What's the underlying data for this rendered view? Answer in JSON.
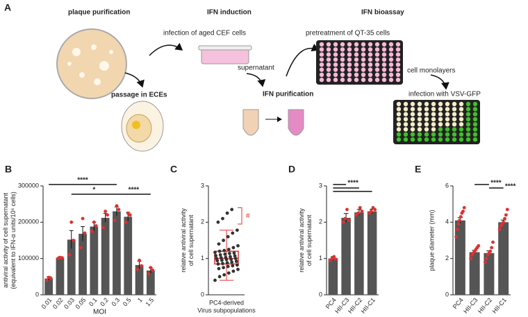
{
  "diagram": {
    "panel": "A",
    "steps": [
      "plaque purification",
      "IFN induction",
      "IFN bioassay"
    ],
    "labels": [
      "passage in ECEs",
      "infection of aged CEF cells",
      "supernatant",
      "IFN purification",
      "pretreatment of QT-35 cells",
      "cell monolayers",
      "infection with VSV-GFP"
    ]
  },
  "chart_data": [
    {
      "type": "bar",
      "panel": "B",
      "xlabel": "MOI",
      "ylabel": [
        "antiviral activity of cell supernatant",
        "(equivalent to IFN-α units/10⁶ cells)"
      ],
      "categories": [
        "0.01",
        "0.02",
        "0.03",
        "0.05",
        "0.1",
        "0.2",
        "0.3",
        "0.5",
        "1",
        "1.5"
      ],
      "values": [
        45000,
        102000,
        152000,
        168000,
        188000,
        212000,
        230000,
        215000,
        82000,
        67000
      ],
      "errors": [
        5000,
        3000,
        25000,
        20000,
        12000,
        12000,
        12000,
        12000,
        10000,
        8000
      ],
      "points": [
        [
          40000,
          48000,
          46000
        ],
        [
          100000,
          103000,
          102000
        ],
        [
          110000,
          200000,
          150000
        ],
        [
          130000,
          210000,
          170000
        ],
        [
          175000,
          200000,
          190000
        ],
        [
          185000,
          230000,
          220000
        ],
        [
          205000,
          245000,
          235000
        ],
        [
          200000,
          225000,
          220000
        ],
        [
          70000,
          95000,
          80000
        ],
        [
          58000,
          75000,
          68000
        ]
      ],
      "ylim": [
        0,
        300000
      ],
      "yticks": [
        0,
        100000,
        200000,
        300000
      ],
      "annotations": [
        "****",
        "*",
        "****"
      ],
      "color": "#555555",
      "point_color": "#e03030"
    },
    {
      "type": "box",
      "panel": "C",
      "ylabel": [
        "relative antiviral activity",
        "of cell supernatant"
      ],
      "categories": [
        [
          "PC4-derived",
          "Virus subpopulations"
        ]
      ],
      "whisker_low": 0.4,
      "q1": 0.85,
      "median": 1.0,
      "q3": 1.2,
      "whisker_high": 1.78,
      "points": [
        0.4,
        0.5,
        0.55,
        0.6,
        0.65,
        0.7,
        0.72,
        0.75,
        0.78,
        0.8,
        0.82,
        0.85,
        0.86,
        0.88,
        0.9,
        0.92,
        0.94,
        0.95,
        0.97,
        0.98,
        1.0,
        1.0,
        1.02,
        1.03,
        1.05,
        1.07,
        1.08,
        1.1,
        1.12,
        1.14,
        1.15,
        1.17,
        1.2,
        1.22,
        1.25,
        1.3,
        1.35,
        1.4,
        1.5,
        1.6,
        1.7,
        1.78,
        2.0,
        2.1,
        2.25,
        2.35
      ],
      "ylim": [
        0,
        3
      ],
      "yticks": [
        0,
        1,
        2,
        3
      ],
      "annotations": [
        "#"
      ],
      "color": "#e03030",
      "point_color": "#333333"
    },
    {
      "type": "bar",
      "panel": "D",
      "ylabel": [
        "relative antiviral activity",
        "of cell supernatant"
      ],
      "categories": [
        "PC4",
        "HII-C3",
        "HII-C2",
        "HII-C1"
      ],
      "values": [
        1.0,
        2.12,
        2.27,
        2.3
      ],
      "errors": [
        0.05,
        0.12,
        0.08,
        0.06
      ],
      "points": [
        [
          0.95,
          1.0,
          1.05,
          0.98
        ],
        [
          2.0,
          2.1,
          2.35,
          2.05
        ],
        [
          2.2,
          2.25,
          2.4,
          2.3
        ],
        [
          2.25,
          2.3,
          2.4,
          2.35
        ]
      ],
      "ylim": [
        0,
        3
      ],
      "yticks": [
        0,
        1,
        2,
        3
      ],
      "annotations": [
        "****"
      ],
      "color": "#555555",
      "point_color": "#e03030"
    },
    {
      "type": "bar",
      "panel": "E",
      "ylabel": [
        "plaque diameter (mm)"
      ],
      "categories": [
        "PC4",
        "HII-C3",
        "HII-C2",
        "HII-C1"
      ],
      "values": [
        4.1,
        2.35,
        2.3,
        4.0
      ],
      "errors": [
        0.15,
        0.1,
        0.12,
        0.12
      ],
      "points": [
        [
          3.2,
          3.6,
          3.9,
          4.1,
          4.3,
          4.5,
          4.6,
          4.8
        ],
        [
          2.0,
          2.2,
          2.3,
          2.4,
          2.5,
          2.6,
          2.7
        ],
        [
          1.8,
          2.0,
          2.2,
          2.3,
          2.4,
          2.6,
          2.9
        ],
        [
          3.6,
          3.8,
          3.9,
          4.0,
          4.2,
          4.4,
          4.7
        ]
      ],
      "ylim": [
        0,
        6
      ],
      "yticks": [
        0,
        2,
        4,
        6
      ],
      "annotations": [
        "****",
        "****"
      ],
      "color": "#555555",
      "point_color": "#e03030"
    }
  ]
}
